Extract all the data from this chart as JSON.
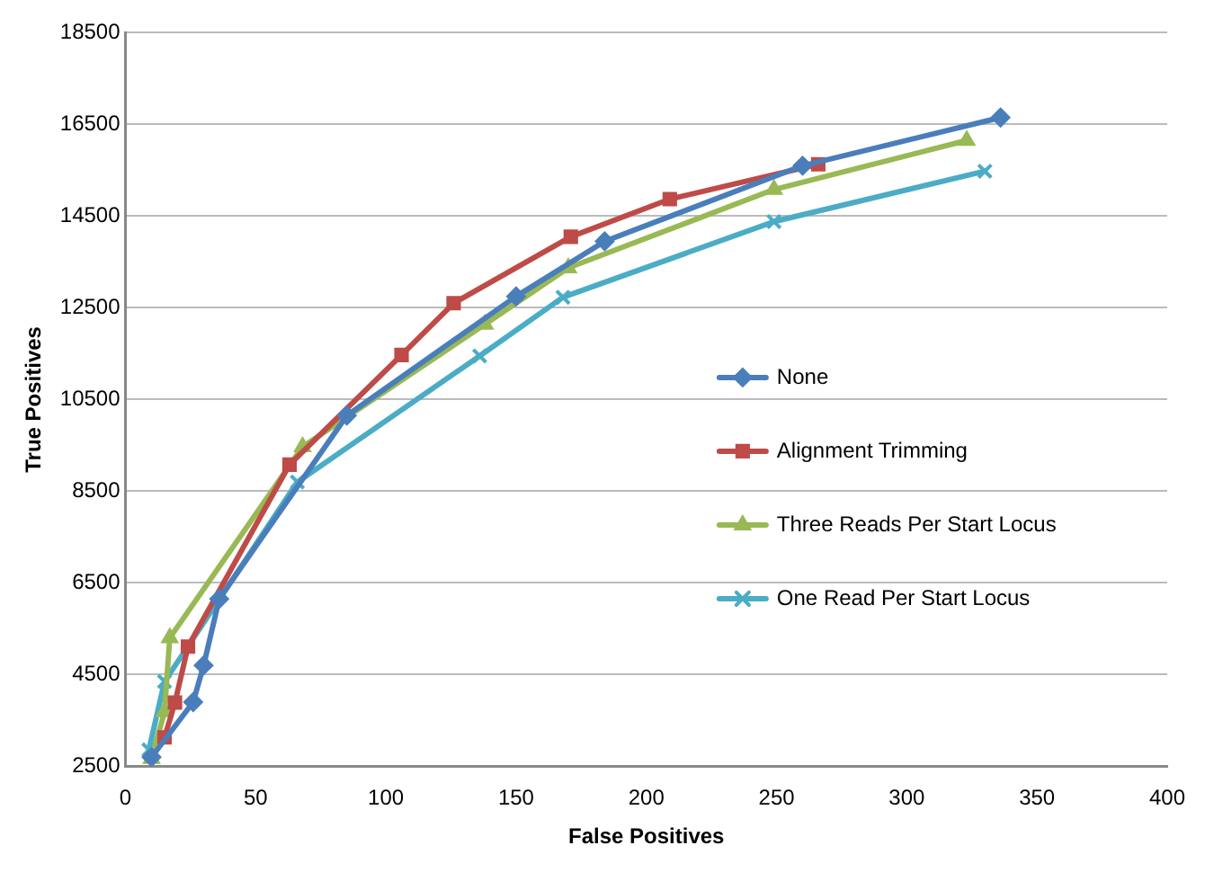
{
  "chart_data": {
    "type": "line",
    "xlabel": "False Positives",
    "ylabel": "True Positives",
    "xlim": [
      0,
      400
    ],
    "xticks": [
      0,
      50,
      100,
      150,
      200,
      250,
      300,
      350,
      400
    ],
    "ylim": [
      2500,
      18500
    ],
    "yticks": [
      2500,
      4500,
      6500,
      8500,
      10500,
      12500,
      14500,
      16500,
      18500
    ],
    "grid": "y",
    "legend": "right",
    "series": [
      {
        "name": "None",
        "color": "#4a7ebb",
        "marker": "diamond",
        "x": [
          10,
          26,
          30,
          36,
          85,
          150,
          184,
          260,
          336
        ],
        "values": [
          2700,
          3900,
          4700,
          6150,
          10150,
          12750,
          13950,
          15600,
          16650
        ]
      },
      {
        "name": "Alignment Trimming",
        "color": "#be4b48",
        "marker": "square",
        "x": [
          15,
          19,
          24,
          63,
          106,
          126,
          171,
          209,
          266
        ],
        "values": [
          3130,
          3890,
          5110,
          9080,
          11470,
          12600,
          14050,
          14870,
          15630
        ]
      },
      {
        "name": "Three Reads Per Start Locus",
        "color": "#98b954",
        "marker": "triangle",
        "x": [
          10,
          15,
          17,
          68,
          138,
          170,
          249,
          323
        ],
        "values": [
          2670,
          3690,
          5300,
          9470,
          12140,
          13370,
          15080,
          16150
        ]
      },
      {
        "name": "One Read Per Start Locus",
        "color": "#4bacc6",
        "marker": "cross",
        "x": [
          9,
          15,
          66,
          136,
          168,
          249,
          330
        ],
        "values": [
          2860,
          4350,
          8700,
          11450,
          12730,
          14380,
          15480
        ]
      }
    ]
  }
}
